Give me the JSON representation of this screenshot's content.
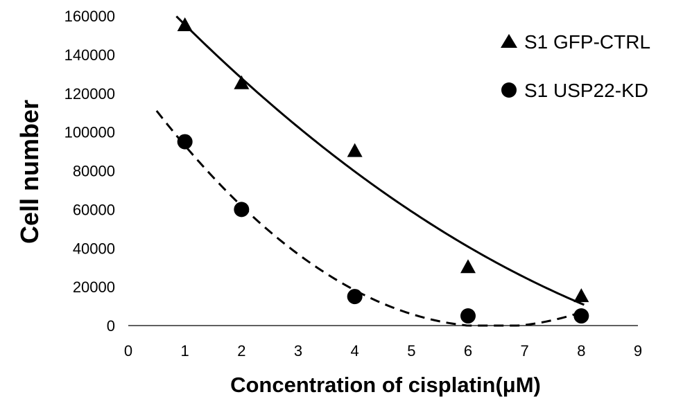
{
  "chart_data": {
    "type": "scatter",
    "title": "",
    "xlabel": "Concentration of cisplatin(μM)",
    "ylabel": "Cell number",
    "xlim": [
      0,
      9
    ],
    "ylim": [
      0,
      160000
    ],
    "x_ticks": [
      "0",
      "1",
      "2",
      "3",
      "4",
      "5",
      "6",
      "7",
      "8",
      "9"
    ],
    "y_ticks": [
      "0",
      "20000",
      "40000",
      "60000",
      "80000",
      "100000",
      "120000",
      "140000",
      "160000"
    ],
    "grid": false,
    "legend_position": "top-right",
    "series": [
      {
        "name": "S1 GFP-CTRL",
        "marker": "triangle",
        "trendline": "polynomial",
        "trendline_style": "solid",
        "x": [
          1,
          2,
          4,
          6,
          8
        ],
        "y": [
          155000,
          125000,
          90000,
          30000,
          15000
        ]
      },
      {
        "name": "S1 USP22-KD",
        "marker": "circle",
        "trendline": "polynomial",
        "trendline_style": "dashed",
        "x": [
          1,
          2,
          4,
          6,
          8
        ],
        "y": [
          95000,
          60000,
          15000,
          5000,
          5000
        ]
      }
    ]
  }
}
